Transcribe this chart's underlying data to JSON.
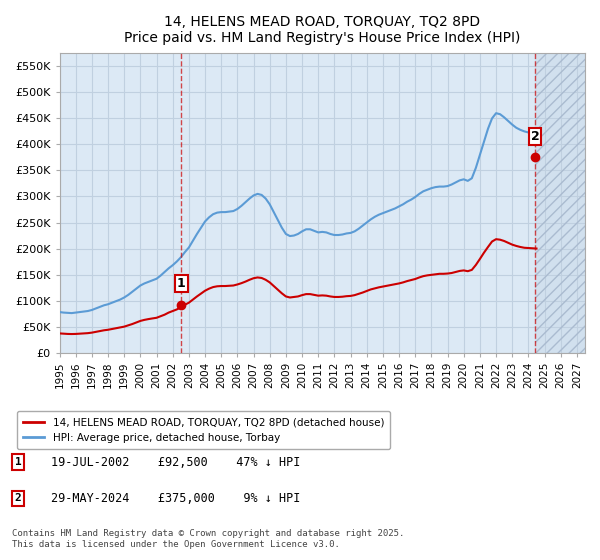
{
  "title": "14, HELENS MEAD ROAD, TORQUAY, TQ2 8PD",
  "subtitle": "Price paid vs. HM Land Registry's House Price Index (HPI)",
  "ylabel_ticks": [
    "£0",
    "£50K",
    "£100K",
    "£150K",
    "£200K",
    "£250K",
    "£300K",
    "£350K",
    "£400K",
    "£450K",
    "£500K",
    "£550K"
  ],
  "ylim": [
    0,
    575000
  ],
  "xlim_start": 1995.0,
  "xlim_end": 2027.5,
  "sale1_date": 2002.54,
  "sale1_price": 92500,
  "sale1_label": "1",
  "sale1_info": "19-JUL-2002    £92,500    47% ↓ HPI",
  "sale2_date": 2024.41,
  "sale2_price": 375000,
  "sale2_label": "2",
  "sale2_info": "29-MAY-2024    £375,000    9% ↓ HPI",
  "legend_line1": "14, HELENS MEAD ROAD, TORQUAY, TQ2 8PD (detached house)",
  "legend_line2": "HPI: Average price, detached house, Torbay",
  "footnote": "Contains HM Land Registry data © Crown copyright and database right 2025.\nThis data is licensed under the Open Government Licence v3.0.",
  "line_red_color": "#cc0000",
  "line_blue_color": "#5b9bd5",
  "grid_color": "#c0d0e0",
  "bg_color": "#dce9f5",
  "hatch_color": "#c8d8e8",
  "hpi_data_x": [
    1995.0,
    1995.25,
    1995.5,
    1995.75,
    1996.0,
    1996.25,
    1996.5,
    1996.75,
    1997.0,
    1997.25,
    1997.5,
    1997.75,
    1998.0,
    1998.25,
    1998.5,
    1998.75,
    1999.0,
    1999.25,
    1999.5,
    1999.75,
    2000.0,
    2000.25,
    2000.5,
    2000.75,
    2001.0,
    2001.25,
    2001.5,
    2001.75,
    2002.0,
    2002.25,
    2002.5,
    2002.75,
    2003.0,
    2003.25,
    2003.5,
    2003.75,
    2004.0,
    2004.25,
    2004.5,
    2004.75,
    2005.0,
    2005.25,
    2005.5,
    2005.75,
    2006.0,
    2006.25,
    2006.5,
    2006.75,
    2007.0,
    2007.25,
    2007.5,
    2007.75,
    2008.0,
    2008.25,
    2008.5,
    2008.75,
    2009.0,
    2009.25,
    2009.5,
    2009.75,
    2010.0,
    2010.25,
    2010.5,
    2010.75,
    2011.0,
    2011.25,
    2011.5,
    2011.75,
    2012.0,
    2012.25,
    2012.5,
    2012.75,
    2013.0,
    2013.25,
    2013.5,
    2013.75,
    2014.0,
    2014.25,
    2014.5,
    2014.75,
    2015.0,
    2015.25,
    2015.5,
    2015.75,
    2016.0,
    2016.25,
    2016.5,
    2016.75,
    2017.0,
    2017.25,
    2017.5,
    2017.75,
    2018.0,
    2018.25,
    2018.5,
    2018.75,
    2019.0,
    2019.25,
    2019.5,
    2019.75,
    2020.0,
    2020.25,
    2020.5,
    2020.75,
    2021.0,
    2021.25,
    2021.5,
    2021.75,
    2022.0,
    2022.25,
    2022.5,
    2022.75,
    2023.0,
    2023.25,
    2023.5,
    2023.75,
    2024.0,
    2024.25,
    2024.5
  ],
  "hpi_data_y": [
    78000,
    77000,
    76500,
    76000,
    77000,
    78000,
    79000,
    80000,
    82000,
    85000,
    88000,
    91000,
    93000,
    96000,
    99000,
    102000,
    106000,
    111000,
    117000,
    123000,
    129000,
    133000,
    136000,
    139000,
    142000,
    148000,
    155000,
    162000,
    168000,
    175000,
    183000,
    193000,
    202000,
    215000,
    228000,
    240000,
    252000,
    260000,
    266000,
    269000,
    270000,
    270000,
    271000,
    272000,
    276000,
    282000,
    289000,
    296000,
    302000,
    305000,
    303000,
    296000,
    285000,
    270000,
    255000,
    240000,
    228000,
    224000,
    225000,
    228000,
    233000,
    237000,
    237000,
    234000,
    231000,
    232000,
    231000,
    228000,
    226000,
    226000,
    227000,
    229000,
    230000,
    233000,
    238000,
    244000,
    250000,
    256000,
    261000,
    265000,
    268000,
    271000,
    274000,
    277000,
    281000,
    285000,
    290000,
    294000,
    299000,
    305000,
    310000,
    313000,
    316000,
    318000,
    319000,
    319000,
    320000,
    323000,
    327000,
    331000,
    333000,
    330000,
    335000,
    355000,
    380000,
    405000,
    430000,
    450000,
    460000,
    458000,
    452000,
    445000,
    438000,
    432000,
    428000,
    425000,
    423000,
    422000,
    422000
  ],
  "red_data_x": [
    1995.0,
    1995.25,
    1995.5,
    1995.75,
    1996.0,
    1996.25,
    1996.5,
    1996.75,
    1997.0,
    1997.25,
    1997.5,
    1997.75,
    1998.0,
    1998.25,
    1998.5,
    1998.75,
    1999.0,
    1999.25,
    1999.5,
    1999.75,
    2000.0,
    2000.25,
    2000.5,
    2000.75,
    2001.0,
    2001.25,
    2001.5,
    2001.75,
    2002.0,
    2002.25,
    2002.5,
    2002.75,
    2003.0,
    2003.25,
    2003.5,
    2003.75,
    2004.0,
    2004.25,
    2004.5,
    2004.75,
    2005.0,
    2005.25,
    2005.5,
    2005.75,
    2006.0,
    2006.25,
    2006.5,
    2006.75,
    2007.0,
    2007.25,
    2007.5,
    2007.75,
    2008.0,
    2008.25,
    2008.5,
    2008.75,
    2009.0,
    2009.25,
    2009.5,
    2009.75,
    2010.0,
    2010.25,
    2010.5,
    2010.75,
    2011.0,
    2011.25,
    2011.5,
    2011.75,
    2012.0,
    2012.25,
    2012.5,
    2012.75,
    2013.0,
    2013.25,
    2013.5,
    2013.75,
    2014.0,
    2014.25,
    2014.5,
    2014.75,
    2015.0,
    2015.25,
    2015.5,
    2015.75,
    2016.0,
    2016.25,
    2016.5,
    2016.75,
    2017.0,
    2017.25,
    2017.5,
    2017.75,
    2018.0,
    2018.25,
    2018.5,
    2018.75,
    2019.0,
    2019.25,
    2019.5,
    2019.75,
    2020.0,
    2020.25,
    2020.5,
    2020.75,
    2021.0,
    2021.25,
    2021.5,
    2021.75,
    2022.0,
    2022.25,
    2022.5,
    2022.75,
    2023.0,
    2023.25,
    2023.5,
    2023.75,
    2024.0,
    2024.25,
    2024.5
  ],
  "red_data_y": [
    37000,
    36500,
    36000,
    35800,
    36000,
    36500,
    37000,
    37500,
    38500,
    40000,
    41500,
    43000,
    44000,
    45500,
    47000,
    48500,
    50000,
    52500,
    55000,
    58000,
    61000,
    63000,
    64500,
    65800,
    67000,
    70000,
    73000,
    77000,
    80000,
    83000,
    87000,
    92000,
    96000,
    102000,
    108000,
    113500,
    119000,
    123000,
    126000,
    127500,
    128000,
    128000,
    128500,
    129000,
    131000,
    133500,
    136500,
    140000,
    143000,
    144500,
    143500,
    140000,
    135000,
    128000,
    121000,
    114000,
    108000,
    106000,
    107000,
    108000,
    110500,
    112500,
    112500,
    111000,
    109500,
    110000,
    109500,
    108000,
    107000,
    107000,
    107500,
    108500,
    109000,
    110500,
    113000,
    115500,
    118500,
    121500,
    123500,
    125500,
    127000,
    128500,
    130000,
    131500,
    133000,
    135000,
    137500,
    139500,
    141500,
    144500,
    147000,
    148500,
    149500,
    150500,
    151500,
    151500,
    152000,
    153000,
    155000,
    157000,
    158000,
    156500,
    159000,
    168500,
    180000,
    192000,
    203000,
    213500,
    218000,
    217000,
    214500,
    211000,
    207500,
    205000,
    203000,
    201500,
    201000,
    200500,
    200000
  ]
}
